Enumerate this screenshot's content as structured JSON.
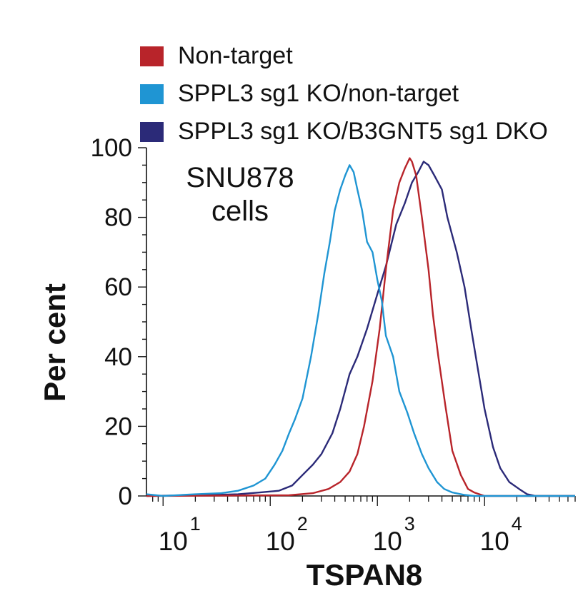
{
  "chart_data": {
    "type": "line",
    "title": "",
    "annotation": [
      "SNU878",
      "cells"
    ],
    "xlabel": "TSPAN8",
    "ylabel": "Per cent",
    "x_scale": "log",
    "xlim": [
      7,
      70000
    ],
    "ylim": [
      0,
      100
    ],
    "y_ticks": [
      "0",
      "20",
      "40",
      "60",
      "80",
      "100"
    ],
    "x_tick_labels": [
      {
        "base": "10",
        "exp": "1",
        "value": 10
      },
      {
        "base": "10",
        "exp": "2",
        "value": 100
      },
      {
        "base": "10",
        "exp": "3",
        "value": 1000
      },
      {
        "base": "10",
        "exp": "4",
        "value": 10000
      }
    ],
    "legend_position": "top",
    "series": [
      {
        "name": "SPPL3 sg1 KO/B3GNT5 sg1 DKO",
        "color": "#2b2a78",
        "points": [
          [
            7,
            0
          ],
          [
            30,
            0.3
          ],
          [
            50,
            0.5
          ],
          [
            80,
            1
          ],
          [
            120,
            1.5
          ],
          [
            160,
            3
          ],
          [
            200,
            6
          ],
          [
            250,
            9
          ],
          [
            300,
            12
          ],
          [
            380,
            18
          ],
          [
            450,
            25
          ],
          [
            550,
            35
          ],
          [
            650,
            40
          ],
          [
            800,
            48
          ],
          [
            1000,
            58
          ],
          [
            1200,
            66
          ],
          [
            1500,
            78
          ],
          [
            1800,
            84
          ],
          [
            2100,
            90
          ],
          [
            2400,
            93
          ],
          [
            2700,
            96
          ],
          [
            3000,
            95
          ],
          [
            3400,
            92
          ],
          [
            4000,
            88
          ],
          [
            4500,
            80
          ],
          [
            5500,
            70
          ],
          [
            6500,
            60
          ],
          [
            7500,
            48
          ],
          [
            8500,
            38
          ],
          [
            10000,
            25
          ],
          [
            12000,
            14
          ],
          [
            14000,
            8
          ],
          [
            17000,
            4
          ],
          [
            21000,
            2
          ],
          [
            25000,
            0.5
          ],
          [
            30000,
            0
          ],
          [
            70000,
            0
          ]
        ]
      },
      {
        "name": "Non-target",
        "color": "#b8242a",
        "points": [
          [
            7,
            0
          ],
          [
            150,
            0.2
          ],
          [
            250,
            0.8
          ],
          [
            350,
            2
          ],
          [
            450,
            4
          ],
          [
            550,
            7
          ],
          [
            650,
            12
          ],
          [
            750,
            20
          ],
          [
            900,
            33
          ],
          [
            1050,
            48
          ],
          [
            1200,
            65
          ],
          [
            1400,
            82
          ],
          [
            1600,
            90
          ],
          [
            1800,
            94
          ],
          [
            2000,
            97
          ],
          [
            2100,
            96
          ],
          [
            2300,
            92
          ],
          [
            2600,
            80
          ],
          [
            3000,
            65
          ],
          [
            3300,
            52
          ],
          [
            3700,
            40
          ],
          [
            4300,
            26
          ],
          [
            5000,
            13
          ],
          [
            6000,
            6
          ],
          [
            7000,
            2
          ],
          [
            8000,
            1
          ],
          [
            10000,
            0
          ],
          [
            70000,
            0
          ]
        ]
      },
      {
        "name": "SPPL3 sg1 KO/non-target",
        "color": "#1f95d3",
        "points": [
          [
            7,
            0.5
          ],
          [
            10,
            0
          ],
          [
            20,
            0.5
          ],
          [
            35,
            0.8
          ],
          [
            50,
            1.5
          ],
          [
            70,
            3
          ],
          [
            90,
            5
          ],
          [
            110,
            9
          ],
          [
            130,
            13
          ],
          [
            150,
            18
          ],
          [
            170,
            22
          ],
          [
            200,
            28
          ],
          [
            240,
            40
          ],
          [
            280,
            52
          ],
          [
            320,
            64
          ],
          [
            360,
            73
          ],
          [
            400,
            82
          ],
          [
            450,
            88
          ],
          [
            500,
            92
          ],
          [
            550,
            95
          ],
          [
            600,
            93
          ],
          [
            650,
            88
          ],
          [
            720,
            82
          ],
          [
            800,
            73
          ],
          [
            900,
            70
          ],
          [
            1000,
            62
          ],
          [
            1100,
            56
          ],
          [
            1200,
            46
          ],
          [
            1400,
            40
          ],
          [
            1600,
            30
          ],
          [
            1900,
            24
          ],
          [
            2200,
            18
          ],
          [
            2600,
            12
          ],
          [
            3000,
            8
          ],
          [
            3600,
            4
          ],
          [
            4200,
            2
          ],
          [
            5000,
            1
          ],
          [
            6500,
            0.3
          ],
          [
            8000,
            0
          ],
          [
            70000,
            0
          ]
        ]
      }
    ]
  },
  "legend": {
    "items": [
      {
        "label": "Non-target",
        "color": "#b8242a"
      },
      {
        "label": "SPPL3 sg1 KO/non-target",
        "color": "#1f95d3"
      },
      {
        "label": "SPPL3 sg1 KO/B3GNT5 sg1 DKO",
        "color": "#2b2a78"
      }
    ]
  }
}
